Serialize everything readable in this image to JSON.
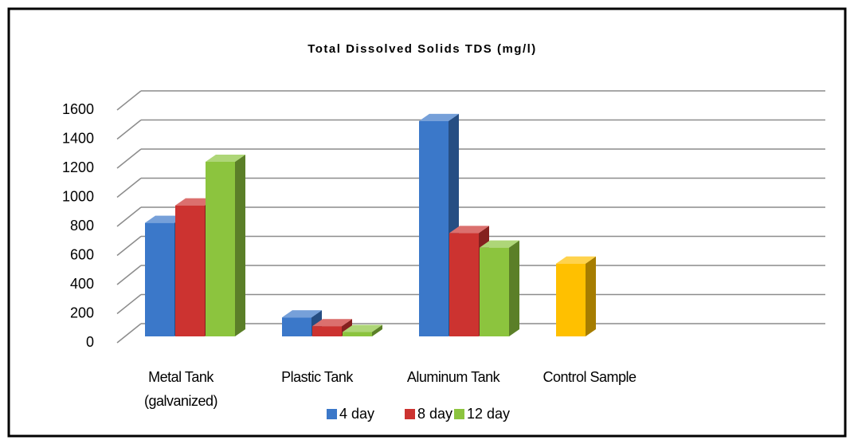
{
  "chart_data": {
    "type": "bar3d",
    "title": "Total Dissolved Solids TDS (mg/l)",
    "categories": [
      "Metal Tank (galvanized)",
      "Plastic Tank",
      "Aluminum Tank",
      "Control Sample"
    ],
    "series": [
      {
        "name": "4 day",
        "color": "#3b78c9",
        "values": [
          780,
          130,
          1480,
          500
        ],
        "bar_colors": [
          "#3b78c9",
          "#3b78c9",
          "#3b78c9",
          "#ffc000"
        ]
      },
      {
        "name": "8 day",
        "color": "#cc3330",
        "values": [
          900,
          70,
          710,
          null
        ]
      },
      {
        "name": "12 day",
        "color": "#8cc43e",
        "values": [
          1200,
          30,
          610,
          null
        ]
      }
    ],
    "ylim": [
      0,
      1600
    ],
    "yticks": [
      0,
      200,
      400,
      600,
      800,
      1000,
      1200,
      1400,
      1600
    ],
    "grid": true
  }
}
